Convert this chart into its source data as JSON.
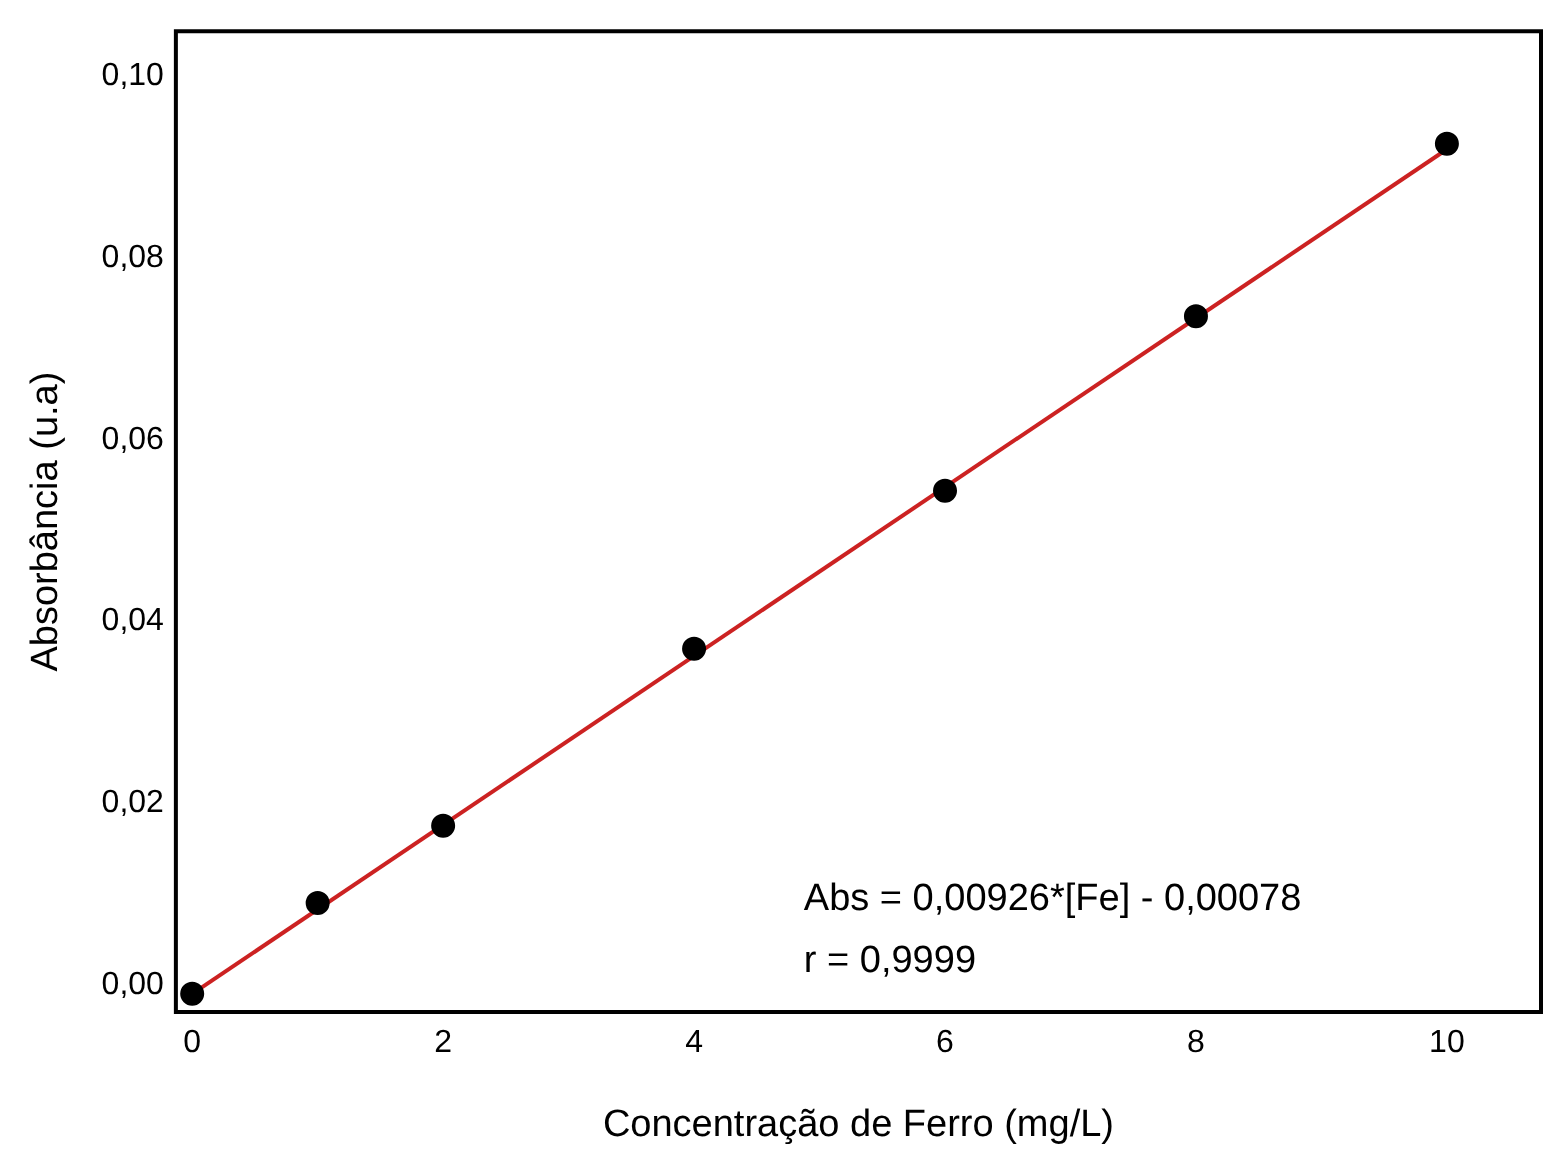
{
  "chart_data": {
    "type": "scatter",
    "xlabel": "Concentração de Ferro (mg/L)",
    "ylabel": "Absorbância (u.a)",
    "series": [
      {
        "color": "#000000",
        "x": [
          0,
          1,
          2,
          4,
          6,
          8,
          10
        ],
        "values": [
          -0.001,
          0.009,
          0.0175,
          0.037,
          0.0544,
          0.0736,
          0.0926
        ]
      },
      {
        "type": "line",
        "marker": "none",
        "color": "#cc2222",
        "x": [
          0,
          10
        ],
        "values": [
          -0.001,
          0.092
        ]
      }
    ],
    "xlim": [
      -0.13,
      10.75
    ],
    "xticks": [
      0,
      2,
      4,
      6,
      8,
      10
    ],
    "ylim": [
      -0.003,
      0.105
    ],
    "yticks": [
      {
        "value": 0,
        "label": "0,00"
      },
      {
        "value": 0.02,
        "label": "0,02"
      },
      {
        "value": 0.04,
        "label": "0,04"
      },
      {
        "value": 0.06,
        "label": "0,06"
      },
      {
        "value": 0.08,
        "label": "0,08"
      },
      {
        "value": 0.1,
        "label": "0,10"
      }
    ],
    "annotations": [
      "Abs = 0,00926*[Fe] - 0,00078",
      "r = 0,9999"
    ],
    "grid": false,
    "legend": false,
    "marker": "circle"
  }
}
